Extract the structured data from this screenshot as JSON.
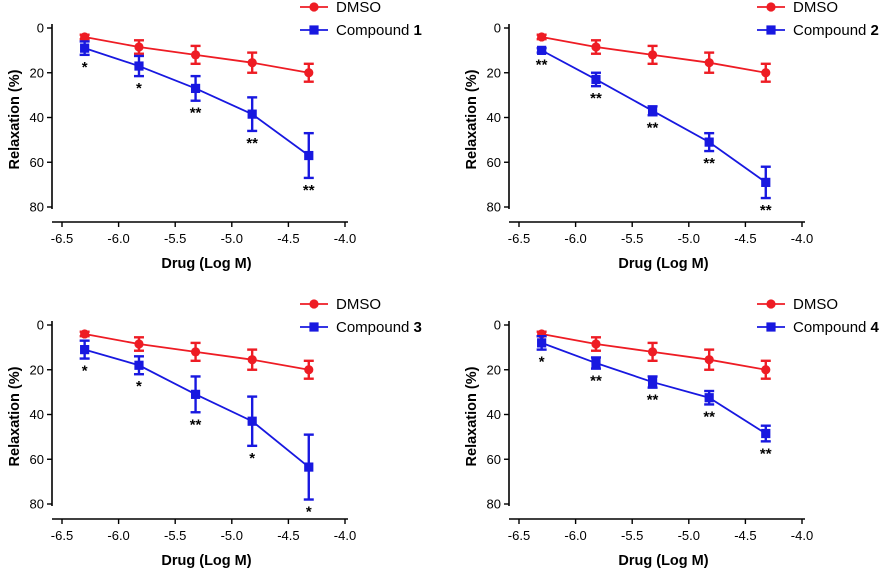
{
  "chart_data": [
    {
      "type": "line",
      "title": "",
      "xlabel": "Drug (Log M)",
      "ylabel": "Relaxation (%)",
      "xlim": [
        -6.5,
        -4.0
      ],
      "ylim": [
        0,
        80
      ],
      "y_inverted": true,
      "xticks": [
        "-6.5",
        "-6.0",
        "-5.5",
        "-5.0",
        "-4.5",
        "-4.0"
      ],
      "yticks": [
        "0",
        "20",
        "40",
        "60",
        "80"
      ],
      "legend": "top-right",
      "x": [
        -6.3,
        -5.82,
        -5.32,
        -4.82,
        -4.32
      ],
      "series": [
        {
          "name": "DMSO",
          "color": "#ee1c24",
          "marker": "circle",
          "values": [
            4,
            8.5,
            12,
            15.5,
            20
          ],
          "errors": [
            1,
            3,
            4,
            4.5,
            4
          ]
        },
        {
          "name": "Compound",
          "name_bold": "1",
          "color": "#1818e0",
          "marker": "square",
          "values": [
            9,
            17,
            27,
            38.5,
            57
          ],
          "errors": [
            3,
            4.5,
            5.5,
            7.5,
            10
          ]
        }
      ],
      "annotations": [
        "*",
        "*",
        "**",
        "**",
        "**"
      ]
    },
    {
      "type": "line",
      "title": "",
      "xlabel": "Drug (Log M)",
      "ylabel": "Relaxation (%)",
      "xlim": [
        -6.5,
        -4.0
      ],
      "ylim": [
        0,
        80
      ],
      "y_inverted": true,
      "xticks": [
        "-6.5",
        "-6.0",
        "-5.5",
        "-5.0",
        "-4.5",
        "-4.0"
      ],
      "yticks": [
        "0",
        "20",
        "40",
        "60",
        "80"
      ],
      "legend": "top-right",
      "x": [
        -6.3,
        -5.82,
        -5.32,
        -4.82,
        -4.32
      ],
      "series": [
        {
          "name": "DMSO",
          "color": "#ee1c24",
          "marker": "circle",
          "values": [
            4,
            8.5,
            12,
            15.5,
            20
          ],
          "errors": [
            1,
            3,
            4,
            4.5,
            4
          ]
        },
        {
          "name": "Compound",
          "name_bold": "2",
          "color": "#1818e0",
          "marker": "square",
          "values": [
            10,
            23,
            37,
            51,
            69
          ],
          "errors": [
            1,
            3,
            2,
            4,
            7
          ]
        }
      ],
      "annotations": [
        "**",
        "**",
        "**",
        "**",
        "**"
      ]
    },
    {
      "type": "line",
      "title": "",
      "xlabel": "Drug (Log M)",
      "ylabel": "Relaxation (%)",
      "xlim": [
        -6.5,
        -4.0
      ],
      "ylim": [
        0,
        80
      ],
      "y_inverted": true,
      "xticks": [
        "-6.5",
        "-6.0",
        "-5.5",
        "-5.0",
        "-4.5",
        "-4.0"
      ],
      "yticks": [
        "0",
        "20",
        "40",
        "60",
        "80"
      ],
      "legend": "top-right",
      "x": [
        -6.3,
        -5.82,
        -5.32,
        -4.82,
        -4.32
      ],
      "series": [
        {
          "name": "DMSO",
          "color": "#ee1c24",
          "marker": "circle",
          "values": [
            4,
            8.5,
            12,
            15.5,
            20
          ],
          "errors": [
            1,
            3,
            4,
            4.5,
            4
          ]
        },
        {
          "name": "Compound",
          "name_bold": "3",
          "color": "#1818e0",
          "marker": "square",
          "values": [
            11,
            18,
            31,
            43,
            63.5
          ],
          "errors": [
            4,
            4,
            8,
            11,
            14.5
          ]
        }
      ],
      "annotations": [
        "*",
        "*",
        "**",
        "*",
        "*"
      ]
    },
    {
      "type": "line",
      "title": "",
      "xlabel": "Drug (Log M)",
      "ylabel": "Relaxation (%)",
      "xlim": [
        -6.5,
        -4.0
      ],
      "ylim": [
        0,
        80
      ],
      "y_inverted": true,
      "xticks": [
        "-6.5",
        "-6.0",
        "-5.5",
        "-5.0",
        "-4.5",
        "-4.0"
      ],
      "yticks": [
        "0",
        "20",
        "40",
        "60",
        "80"
      ],
      "legend": "top-right",
      "x": [
        -6.3,
        -5.82,
        -5.32,
        -4.82,
        -4.32
      ],
      "series": [
        {
          "name": "DMSO",
          "color": "#ee1c24",
          "marker": "circle",
          "values": [
            4,
            8.5,
            12,
            15.5,
            20
          ],
          "errors": [
            1,
            3,
            4,
            4.5,
            4
          ]
        },
        {
          "name": "Compound",
          "name_bold": "4",
          "color": "#1818e0",
          "marker": "square",
          "values": [
            8,
            17,
            25.5,
            32.5,
            48.5
          ],
          "errors": [
            3,
            2.5,
            2.5,
            3,
            3.5
          ]
        }
      ],
      "annotations": [
        "*",
        "**",
        "**",
        "**",
        "**"
      ]
    }
  ]
}
